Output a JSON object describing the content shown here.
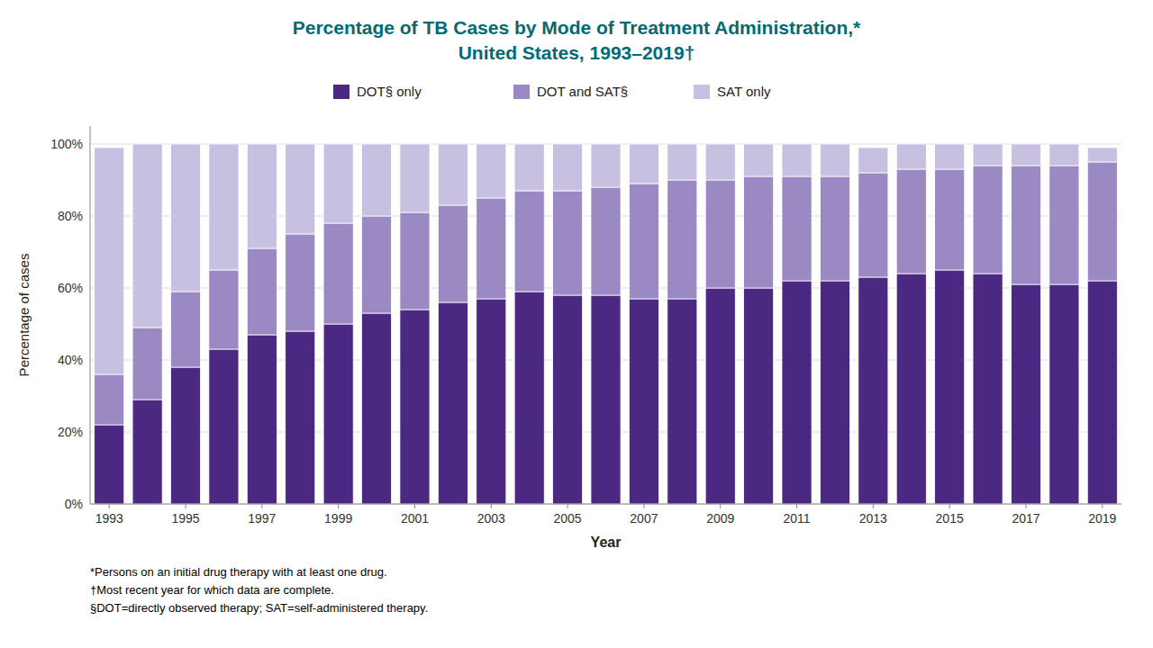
{
  "chart_data": {
    "type": "bar",
    "stacked": true,
    "title": "Percentage of TB Cases by Mode of Treatment Administration,*",
    "subtitle": "United States, 1993–2019†",
    "x_label": "Year",
    "y_label": "Percentage of cases",
    "categories": [
      "1993",
      null,
      "1995",
      null,
      "1997",
      null,
      "1999",
      null,
      "2001",
      null,
      "2003",
      null,
      "2005",
      null,
      "2007",
      null,
      "2009",
      null,
      "2011",
      null,
      "2013",
      null,
      "2015",
      null,
      "2017",
      null,
      "2019"
    ],
    "series": [
      {
        "name": "DOT§ only",
        "color": "#4B2882",
        "values": [
          22,
          29,
          38,
          43,
          47,
          48,
          50,
          53,
          54,
          56,
          57,
          59,
          58,
          58,
          57,
          57,
          60,
          60,
          62,
          62,
          63,
          64,
          65,
          64,
          61,
          61,
          62
        ]
      },
      {
        "name": "DOT and SAT§",
        "color": "#9B89C4",
        "values": [
          14,
          20,
          21,
          22,
          24,
          27,
          28,
          27,
          27,
          27,
          28,
          28,
          29,
          30,
          32,
          33,
          30,
          31,
          29,
          29,
          29,
          29,
          28,
          30,
          33,
          33,
          33
        ]
      },
      {
        "name": "SAT only",
        "color": "#C8C0E0",
        "values": [
          63,
          51,
          41,
          35,
          29,
          25,
          22,
          20,
          19,
          17,
          15,
          13,
          13,
          12,
          11,
          10,
          10,
          9,
          9,
          9,
          7,
          7,
          7,
          6,
          6,
          6,
          4
        ]
      }
    ],
    "ylim": [
      0,
      105
    ],
    "yticks": [
      {
        "value": 0,
        "label": "0%"
      },
      {
        "value": 20,
        "label": "20%"
      },
      {
        "value": 40,
        "label": "40%"
      },
      {
        "value": 60,
        "label": "60%"
      },
      {
        "value": 80,
        "label": "80%"
      },
      {
        "value": 100,
        "label": "100%"
      }
    ],
    "grid": true,
    "legend": "top",
    "annotations": [
      "*Persons on an initial drug therapy with at least one drug.",
      "†Most recent year for which data are complete.",
      "§DOT=directly observed therapy; SAT=self-administered therapy."
    ]
  }
}
